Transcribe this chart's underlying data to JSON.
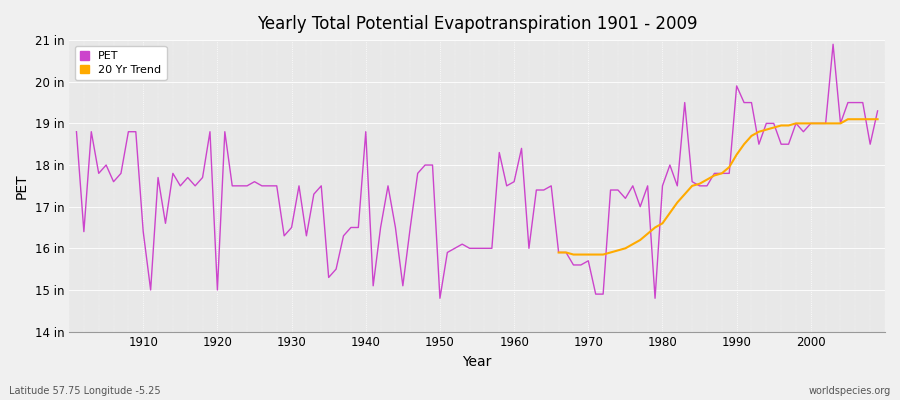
{
  "title": "Yearly Total Potential Evapotranspiration 1901 - 2009",
  "xlabel": "Year",
  "ylabel": "PET",
  "bottom_left_label": "Latitude 57.75 Longitude -5.25",
  "bottom_right_label": "worldspecies.org",
  "background_color": "#f0f0f0",
  "plot_bg_color": "#e8e8e8",
  "pet_color": "#cc44cc",
  "trend_color": "#ffaa00",
  "ylim": [
    14,
    21
  ],
  "yticks": [
    14,
    15,
    16,
    17,
    18,
    19,
    20,
    21
  ],
  "ytick_labels": [
    "14 in",
    "15 in",
    "16 in",
    "17 in",
    "18 in",
    "19 in",
    "20 in",
    "21 in"
  ],
  "years": [
    1901,
    1902,
    1903,
    1904,
    1905,
    1906,
    1907,
    1908,
    1909,
    1910,
    1911,
    1912,
    1913,
    1914,
    1915,
    1916,
    1917,
    1918,
    1919,
    1920,
    1921,
    1922,
    1923,
    1924,
    1925,
    1926,
    1927,
    1928,
    1929,
    1930,
    1931,
    1932,
    1933,
    1934,
    1935,
    1936,
    1937,
    1938,
    1939,
    1940,
    1941,
    1942,
    1943,
    1944,
    1945,
    1946,
    1947,
    1948,
    1949,
    1950,
    1951,
    1952,
    1953,
    1954,
    1955,
    1956,
    1957,
    1958,
    1959,
    1960,
    1961,
    1962,
    1963,
    1964,
    1965,
    1966,
    1967,
    1968,
    1969,
    1970,
    1971,
    1972,
    1973,
    1974,
    1975,
    1976,
    1977,
    1978,
    1979,
    1980,
    1981,
    1982,
    1983,
    1984,
    1985,
    1986,
    1987,
    1988,
    1989,
    1990,
    1991,
    1992,
    1993,
    1994,
    1995,
    1996,
    1997,
    1998,
    1999,
    2000,
    2001,
    2002,
    2003,
    2004,
    2005,
    2006,
    2007,
    2008,
    2009
  ],
  "pet_values": [
    18.8,
    16.4,
    18.8,
    17.8,
    18.0,
    17.6,
    17.8,
    18.8,
    18.8,
    16.4,
    15.0,
    17.7,
    16.6,
    17.8,
    17.5,
    17.7,
    17.5,
    17.7,
    18.8,
    15.0,
    18.8,
    17.5,
    17.5,
    17.5,
    17.6,
    17.5,
    17.5,
    17.5,
    16.3,
    16.5,
    17.5,
    16.3,
    17.3,
    17.5,
    15.3,
    15.5,
    16.3,
    16.5,
    16.5,
    18.8,
    15.1,
    16.5,
    17.5,
    16.5,
    15.1,
    16.5,
    17.8,
    18.0,
    18.0,
    14.8,
    15.9,
    16.0,
    16.1,
    16.0,
    16.0,
    16.0,
    16.0,
    18.3,
    17.5,
    17.6,
    18.4,
    16.0,
    17.4,
    17.4,
    17.5,
    15.9,
    15.9,
    15.6,
    15.6,
    15.7,
    14.9,
    14.9,
    17.4,
    17.4,
    17.2,
    17.5,
    17.0,
    17.5,
    14.8,
    17.5,
    18.0,
    17.5,
    19.5,
    17.6,
    17.5,
    17.5,
    17.8,
    17.8,
    17.8,
    19.9,
    19.5,
    19.5,
    18.5,
    19.0,
    19.0,
    18.5,
    18.5,
    19.0,
    18.8,
    19.0,
    19.0,
    19.0,
    20.9,
    19.0,
    19.5,
    19.5,
    19.5,
    18.5,
    19.3
  ],
  "trend_years": [
    1966,
    1967,
    1968,
    1969,
    1970,
    1971,
    1972,
    1973,
    1974,
    1975,
    1976,
    1977,
    1978,
    1979,
    1980,
    1981,
    1982,
    1983,
    1984,
    1985,
    1986,
    1987,
    1988,
    1989,
    1990,
    1991,
    1992,
    1993,
    1994,
    1995,
    1996,
    1997,
    1998,
    1999,
    2000,
    2001,
    2002,
    2003,
    2004,
    2005,
    2006,
    2007,
    2008,
    2009
  ],
  "trend_values": [
    15.9,
    15.9,
    15.85,
    15.85,
    15.85,
    15.85,
    15.85,
    15.9,
    15.95,
    16.0,
    16.1,
    16.2,
    16.35,
    16.5,
    16.6,
    16.85,
    17.1,
    17.3,
    17.5,
    17.55,
    17.65,
    17.75,
    17.8,
    17.95,
    18.25,
    18.5,
    18.7,
    18.8,
    18.85,
    18.9,
    18.95,
    18.95,
    19.0,
    19.0,
    19.0,
    19.0,
    19.0,
    19.0,
    19.0,
    19.1,
    19.1,
    19.1,
    19.1,
    19.1
  ]
}
